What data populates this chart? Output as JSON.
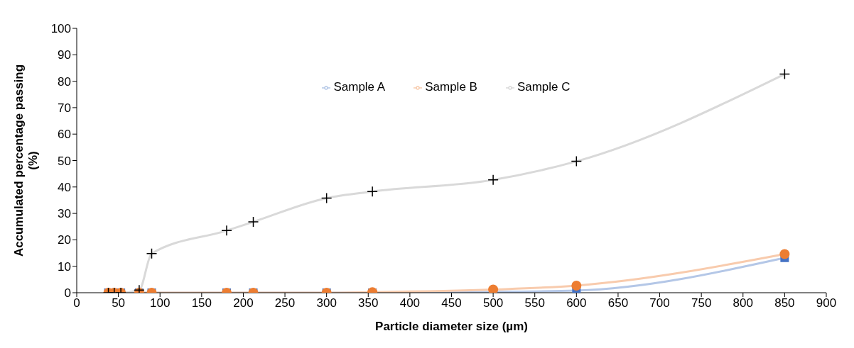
{
  "chart_data": {
    "type": "line",
    "xlabel": "Particle diameter size (µm)",
    "ylabel": "Accumulated percentage passing (%)",
    "x": [
      38,
      45,
      53,
      75,
      90,
      180,
      212,
      300,
      355,
      500,
      600,
      850
    ],
    "series": [
      {
        "name": "Sample A",
        "color": "#4472c4",
        "marker": "square",
        "values": [
          0,
          0,
          0,
          0,
          0,
          0,
          0,
          0,
          0,
          0.3,
          0.8,
          13.2
        ]
      },
      {
        "name": "Sample B",
        "color": "#ed7d31",
        "marker": "circle",
        "values": [
          0,
          0,
          0,
          0,
          0,
          0,
          0,
          0,
          0.2,
          1.2,
          2.7,
          14.6
        ]
      },
      {
        "name": "Sample C",
        "color": "#000000",
        "marker": "cross",
        "values": [
          0,
          0,
          0,
          1,
          14.8,
          23.5,
          26.8,
          35.8,
          38.3,
          42.7,
          49.7,
          82.7
        ]
      }
    ],
    "xlim": [
      0,
      900
    ],
    "xticks": [
      0,
      50,
      100,
      150,
      200,
      250,
      300,
      350,
      400,
      450,
      500,
      550,
      600,
      650,
      700,
      750,
      800,
      850,
      900
    ],
    "ylim": [
      0,
      100
    ],
    "yticks": [
      0,
      10,
      20,
      30,
      40,
      50,
      60,
      70,
      80,
      90,
      100
    ],
    "legend": "top",
    "line_style": "solid"
  }
}
